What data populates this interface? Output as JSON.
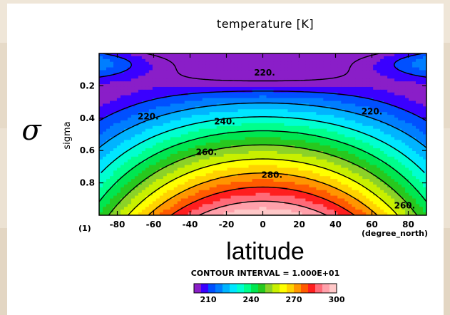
{
  "chart_data": {
    "type": "contour",
    "title": "temperature [K]",
    "ylabel": "sigma",
    "y_symbol": "σ",
    "xlabel": "latitude",
    "x_unit": "(degree_north)",
    "frame_label": "(1)",
    "xlim": [
      -90,
      90
    ],
    "ylim": [
      1.0,
      0.0
    ],
    "x_ticks": [
      -80,
      -60,
      -40,
      -20,
      0,
      20,
      40,
      60,
      80
    ],
    "y_ticks": [
      0.2,
      0.4,
      0.6,
      0.8
    ],
    "contour_interval": "CONTOUR INTERVAL = 1.000E+01",
    "contour_labels": [
      {
        "value": 220,
        "text": "220.",
        "lat": -63,
        "sigma": 0.39
      },
      {
        "value": 220,
        "text": "220.",
        "lat": 1,
        "sigma": 0.12
      },
      {
        "value": 220,
        "text": "220.",
        "lat": 60,
        "sigma": 0.36
      },
      {
        "value": 240,
        "text": "240.",
        "lat": -21,
        "sigma": 0.42
      },
      {
        "value": 260,
        "text": "260.",
        "lat": -31,
        "sigma": 0.61
      },
      {
        "value": 280,
        "text": "280.",
        "lat": 5,
        "sigma": 0.75
      },
      {
        "value": 260,
        "text": "260.",
        "lat": 78,
        "sigma": 0.94
      }
    ],
    "colorbar": {
      "levels": [
        200,
        205,
        210,
        215,
        220,
        225,
        230,
        235,
        240,
        245,
        250,
        255,
        260,
        265,
        270,
        275,
        280,
        285,
        290,
        295,
        300
      ],
      "colors": [
        "#8a1ec8",
        "#3a00ff",
        "#0050ff",
        "#007eff",
        "#00b4ff",
        "#00e6ff",
        "#00ffd0",
        "#00ff8c",
        "#00e650",
        "#28c81e",
        "#8cd228",
        "#c8f000",
        "#ffff00",
        "#ffd200",
        "#ff9600",
        "#ff5a00",
        "#ff1e1e",
        "#ff6a78",
        "#ffa0aa",
        "#ffc8c8"
      ],
      "tick_labels": [
        210,
        240,
        270,
        300
      ]
    },
    "grid": false,
    "legend": "colorbar-bottom"
  }
}
